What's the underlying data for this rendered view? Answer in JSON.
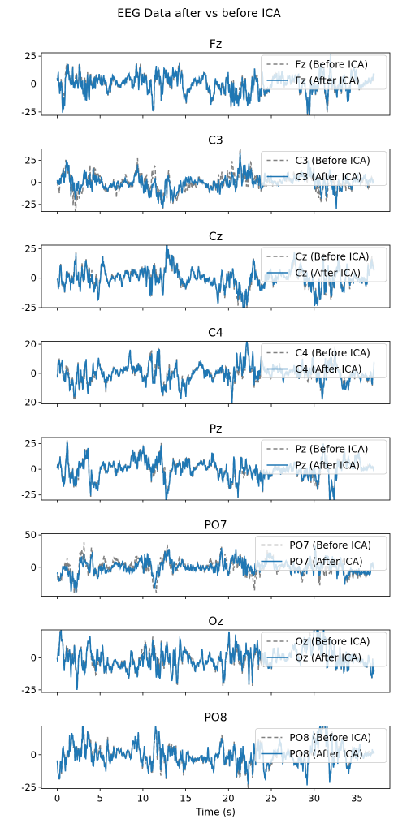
{
  "figure": {
    "title": "EEG Data after vs before ICA",
    "xlabel": "Time (s)"
  },
  "colors": {
    "before": "#808080",
    "after": "#1f77b4"
  },
  "chart_data": {
    "type": "line",
    "title": "EEG Data after vs before ICA",
    "xlabel": "Time (s)",
    "xlim": [
      -1.85,
      38.85
    ],
    "xticks": [
      0,
      5,
      10,
      15,
      20,
      25,
      30,
      35
    ],
    "grid": false,
    "legend_placement": "upper right",
    "panels": [
      {
        "channel": "Fz",
        "title": "Fz",
        "ylim": [
          -28,
          28
        ],
        "yticks": [
          -25,
          0,
          25
        ],
        "amp_after": 8,
        "amp_before": 8,
        "series": [
          {
            "name": "Fz (Before ICA)",
            "style": "dashed"
          },
          {
            "name": "Fz (After ICA)",
            "style": "solid"
          }
        ]
      },
      {
        "channel": "C3",
        "title": "C3",
        "ylim": [
          -33,
          38
        ],
        "yticks": [
          -25,
          0,
          25
        ],
        "amp_after": 8,
        "amp_before": 11,
        "series": [
          {
            "name": "C3 (Before ICA)",
            "style": "dashed"
          },
          {
            "name": "C3 (After ICA)",
            "style": "solid"
          }
        ]
      },
      {
        "channel": "Cz",
        "title": "Cz",
        "ylim": [
          -25,
          28
        ],
        "yticks": [
          -25,
          0,
          25
        ],
        "amp_after": 8,
        "amp_before": 8,
        "series": [
          {
            "name": "Cz (Before ICA)",
            "style": "dashed"
          },
          {
            "name": "Cz (After ICA)",
            "style": "solid"
          }
        ]
      },
      {
        "channel": "C4",
        "title": "C4",
        "ylim": [
          -21,
          22
        ],
        "yticks": [
          -20,
          0,
          20
        ],
        "amp_after": 6,
        "amp_before": 6,
        "series": [
          {
            "name": "C4 (Before ICA)",
            "style": "dashed"
          },
          {
            "name": "C4 (After ICA)",
            "style": "solid"
          }
        ]
      },
      {
        "channel": "Pz",
        "title": "Pz",
        "ylim": [
          -30,
          31
        ],
        "yticks": [
          -25,
          0,
          25
        ],
        "amp_after": 9,
        "amp_before": 9,
        "series": [
          {
            "name": "Pz (Before ICA)",
            "style": "dashed"
          },
          {
            "name": "Pz (After ICA)",
            "style": "solid"
          }
        ]
      },
      {
        "channel": "PO7",
        "title": "PO7",
        "ylim": [
          -45,
          52
        ],
        "yticks": [
          0,
          50
        ],
        "amp_after": 10,
        "amp_before": 14,
        "series": [
          {
            "name": "PO7 (Before ICA)",
            "style": "dashed"
          },
          {
            "name": "PO7 (After ICA)",
            "style": "solid"
          }
        ]
      },
      {
        "channel": "Oz",
        "title": "Oz",
        "ylim": [
          -27,
          22
        ],
        "yticks": [
          -25,
          0
        ],
        "amp_after": 8,
        "amp_before": 8,
        "series": [
          {
            "name": "Oz (Before ICA)",
            "style": "dashed"
          },
          {
            "name": "Oz (After ICA)",
            "style": "solid"
          }
        ]
      },
      {
        "channel": "PO8",
        "title": "PO8",
        "ylim": [
          -26,
          22
        ],
        "yticks": [
          -25,
          0
        ],
        "amp_after": 8,
        "amp_before": 8,
        "series": [
          {
            "name": "PO8 (Before ICA)",
            "style": "dashed"
          },
          {
            "name": "PO8 (After ICA)",
            "style": "solid"
          }
        ]
      }
    ]
  }
}
